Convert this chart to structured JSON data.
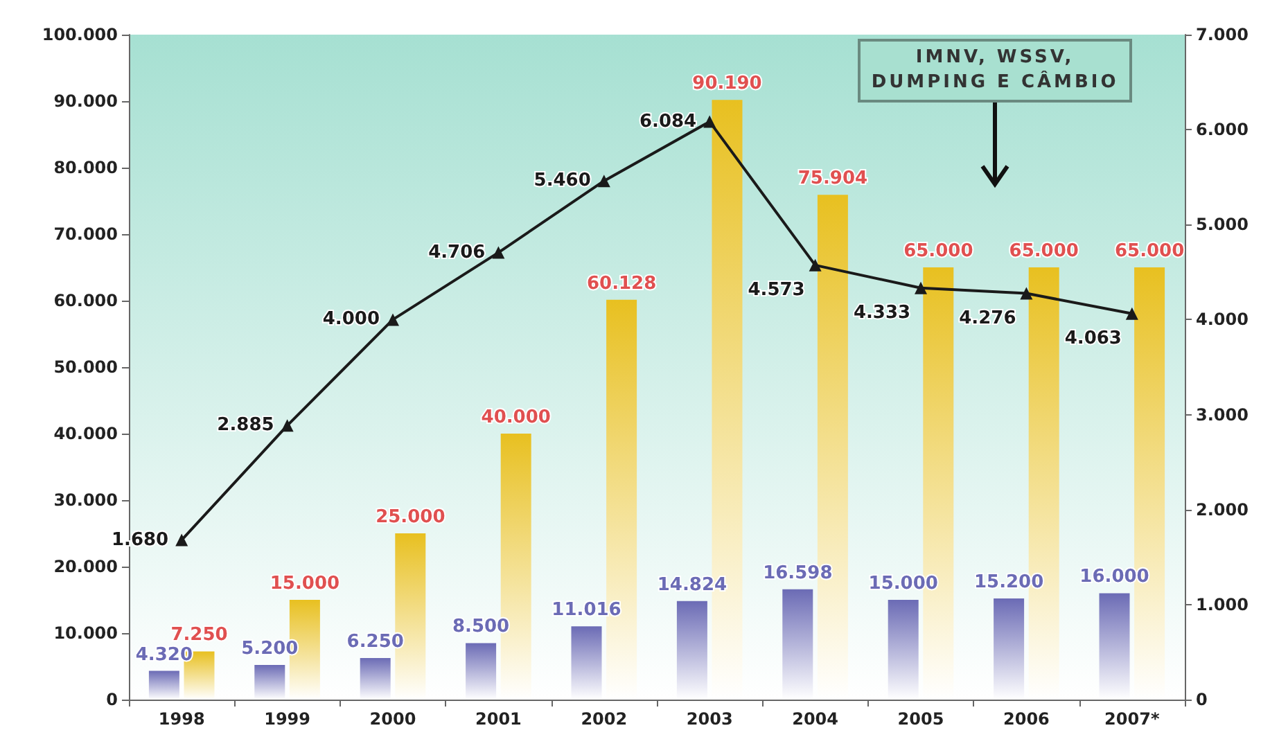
{
  "chart_data": {
    "type": "bar",
    "categories": [
      "1998",
      "1999",
      "2000",
      "2001",
      "2002",
      "2003",
      "2004",
      "2005",
      "2006",
      "2007*"
    ],
    "series": [
      {
        "color": "#6b6bb5",
        "values": [
          4320,
          5200,
          6250,
          8500,
          11016,
          14824,
          16598,
          15000,
          15200,
          16000
        ],
        "value_labels": [
          "4.320",
          "5.200",
          "6.250",
          "8.500",
          "11.016",
          "14.824",
          "16.598",
          "15.000",
          "15.200",
          "16.000"
        ]
      },
      {
        "color": "#e8c020",
        "values": [
          7250,
          15000,
          25000,
          40000,
          60128,
          90190,
          75904,
          65000,
          65000,
          65000
        ],
        "value_labels": [
          "7.250",
          "15.000",
          "25.000",
          "40.000",
          "60.128",
          "90.190",
          "75.904",
          "65.000",
          "65.000",
          "65.000"
        ]
      },
      {
        "type": "line",
        "axis": "y2",
        "color": "#1a1a1a",
        "marker": "triangle",
        "values": [
          1680,
          2885,
          4000,
          4706,
          5460,
          6084,
          4573,
          4333,
          4276,
          4063
        ],
        "value_labels": [
          "1.680",
          "2.885",
          "4.000",
          "4.706",
          "5.460",
          "6.084",
          "4.573",
          "4.333",
          "4.276",
          "4.063"
        ]
      }
    ],
    "ylim": [
      0,
      100000
    ],
    "yticks": [
      0,
      {
        "value": 10000,
        "label": "10.000"
      },
      {
        "value": 20000,
        "label": "20.000"
      },
      {
        "value": 30000,
        "label": "30.000"
      },
      {
        "value": 40000,
        "label": "40.000"
      },
      {
        "value": 50000,
        "label": "50.000"
      },
      {
        "value": 60000,
        "label": "60.000"
      },
      {
        "value": 70000,
        "label": "70.000"
      },
      {
        "value": 80000,
        "label": "80.000"
      },
      {
        "value": 90000,
        "label": "90.000"
      },
      {
        "value": 100000,
        "label": "100.000"
      }
    ],
    "y2lim": [
      0,
      7000
    ],
    "y2ticks": [
      0,
      {
        "value": 1000,
        "label": "1.000"
      },
      {
        "value": 2000,
        "label": "2.000"
      },
      {
        "value": 3000,
        "label": "3.000"
      },
      {
        "value": 4000,
        "label": "4.000"
      },
      {
        "value": 5000,
        "label": "5.000"
      },
      {
        "value": 6000,
        "label": "6.000"
      },
      {
        "value": 7000,
        "label": "7.000"
      }
    ],
    "annotations": [
      "IMNV, WSSV,\nDUMPING E CÂMBIO"
    ],
    "grid": false
  }
}
